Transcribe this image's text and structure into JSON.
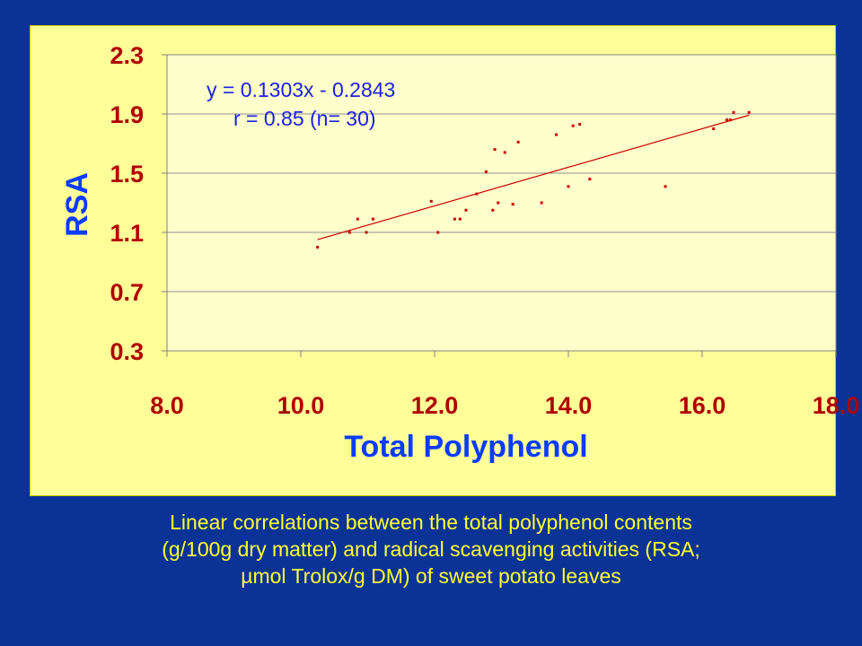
{
  "chart_data": {
    "type": "scatter",
    "title": "",
    "xlabel": "Total Polyphenol",
    "ylabel": "RSA",
    "xlim": [
      8.0,
      18.0
    ],
    "ylim": [
      0.3,
      2.3
    ],
    "x_ticks": [
      "8.0",
      "10.0",
      "12.0",
      "14.0",
      "16.0",
      "18.0"
    ],
    "y_ticks": [
      "2.3",
      "1.9",
      "1.5",
      "1.1",
      "0.7",
      "0.3"
    ],
    "grid": "horizontal",
    "legend": "none",
    "annotations": [
      "y = 0.1303x - 0.2843",
      "r = 0.85 (n= 30)"
    ],
    "trendline": {
      "slope": 0.1303,
      "intercept": -0.2843,
      "x_range": [
        10.25,
        16.7
      ]
    },
    "points": [
      [
        10.25,
        1.0
      ],
      [
        10.73,
        1.1
      ],
      [
        10.85,
        1.19
      ],
      [
        10.98,
        1.1
      ],
      [
        11.08,
        1.19
      ],
      [
        11.95,
        1.31
      ],
      [
        12.05,
        1.1
      ],
      [
        12.3,
        1.19
      ],
      [
        12.38,
        1.19
      ],
      [
        12.47,
        1.25
      ],
      [
        12.63,
        1.36
      ],
      [
        12.77,
        1.51
      ],
      [
        12.87,
        1.25
      ],
      [
        12.9,
        1.66
      ],
      [
        12.95,
        1.3
      ],
      [
        13.05,
        1.64
      ],
      [
        13.17,
        1.29
      ],
      [
        13.25,
        1.71
      ],
      [
        13.6,
        1.3
      ],
      [
        13.82,
        1.76
      ],
      [
        14.0,
        1.41
      ],
      [
        14.07,
        1.82
      ],
      [
        14.17,
        1.83
      ],
      [
        14.32,
        1.46
      ],
      [
        15.45,
        1.41
      ],
      [
        16.17,
        1.8
      ],
      [
        16.37,
        1.86
      ],
      [
        16.42,
        1.86
      ],
      [
        16.47,
        1.91
      ],
      [
        16.7,
        1.91
      ]
    ],
    "colors": {
      "background": "#0b3396",
      "plot_area": "#ffffcc",
      "points": "#cc0000",
      "trendline": "#cc0000",
      "tick_labels": "#b00000",
      "axis_titles": "#0a3cff"
    }
  },
  "caption": {
    "line1": "Linear correlations between the total polyphenol contents",
    "line2": "(g/100g dry matter) and radical scavenging activities (RSA;",
    "line3": "µmol Trolox/g DM) of sweet potato leaves"
  }
}
